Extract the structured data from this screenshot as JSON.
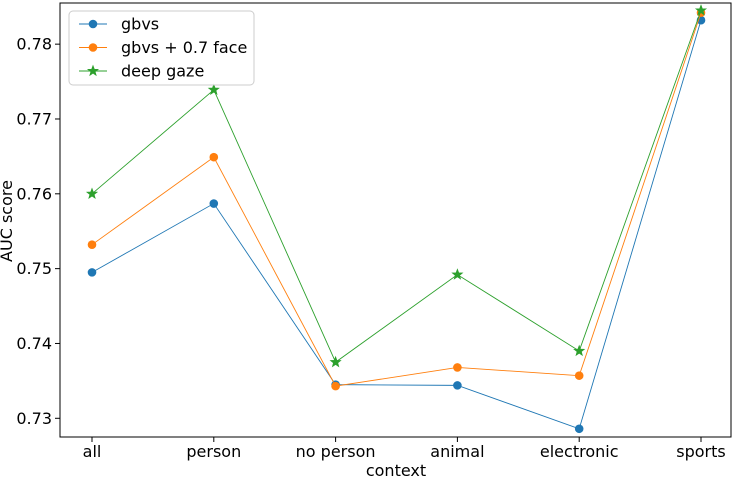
{
  "chart_data": {
    "type": "line",
    "title": "",
    "xlabel": "context",
    "ylabel": "AUC score",
    "categories": [
      "all",
      "person",
      "no person",
      "animal",
      "electronic",
      "sports"
    ],
    "yticks": [
      "0.73",
      "0.74",
      "0.75",
      "0.76",
      "0.77",
      "0.78"
    ],
    "ylim": [
      0.7275,
      0.7855
    ],
    "grid": false,
    "legend_position": "top-left",
    "series": [
      {
        "name": "gbvs",
        "marker": "circle",
        "color": "#1f77b4",
        "values": [
          0.7495,
          0.7587,
          0.7345,
          0.7344,
          0.7286,
          0.7832
        ]
      },
      {
        "name": "gbvs + 0.7 face",
        "marker": "circle",
        "color": "#ff7f0e",
        "values": [
          0.7532,
          0.7649,
          0.7343,
          0.7368,
          0.7357,
          0.7842
        ]
      },
      {
        "name": "deep gaze",
        "marker": "star",
        "color": "#2ca02c",
        "values": [
          0.76,
          0.7739,
          0.7375,
          0.7492,
          0.739,
          0.7845
        ]
      }
    ]
  }
}
